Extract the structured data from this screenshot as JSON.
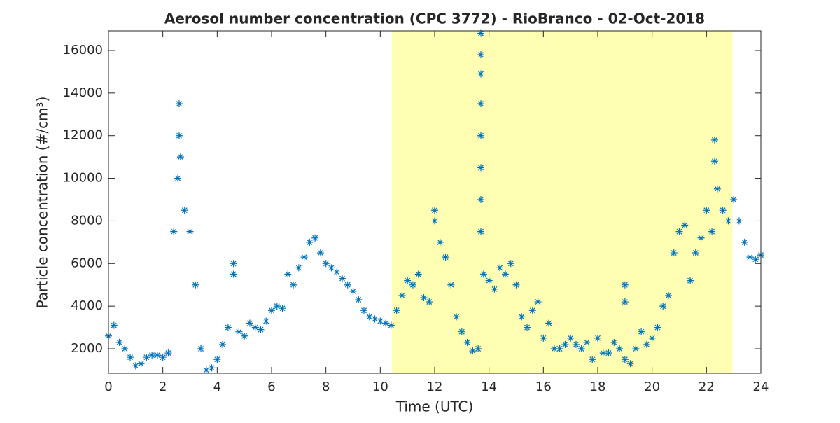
{
  "chart_data": {
    "type": "scatter",
    "title": "Aerosol number concentration (CPC 3772) - RioBranco - 02-Oct-2018",
    "x_label": "Time (UTC)",
    "y_label": "Particle concentration (#/cm³)",
    "xlim": [
      0,
      24
    ],
    "xticks": [
      0,
      2,
      4,
      6,
      8,
      10,
      12,
      14,
      16,
      18,
      20,
      22,
      24
    ],
    "ylim": [
      850,
      16920
    ],
    "yticks": [
      2000,
      4000,
      6000,
      8000,
      10000,
      12000,
      14000,
      16000
    ],
    "grid": false,
    "shaded_region": {
      "x": [
        10.43,
        22.95
      ],
      "color": "#ffffb3"
    },
    "series": [
      {
        "name": "CPC 3772",
        "color": "#0072bd",
        "marker": "asterisk",
        "x": [
          0,
          0.2,
          0.4,
          0.6,
          0.8,
          1.0,
          1.2,
          1.4,
          1.6,
          1.8,
          2.0,
          2.2,
          2.4,
          2.6,
          2.8,
          3.0,
          3.2,
          3.4,
          3.6,
          3.8,
          4.0,
          4.2,
          4.4,
          4.6,
          4.8,
          5.0,
          5.2,
          5.4,
          5.6,
          5.8,
          6.0,
          6.2,
          6.4,
          6.6,
          6.8,
          7.0,
          7.2,
          7.4,
          7.6,
          7.8,
          8.0,
          8.2,
          8.4,
          8.6,
          8.8,
          9.0,
          9.2,
          9.4,
          9.6,
          9.8,
          10.0,
          10.2,
          10.4,
          10.6,
          10.8,
          11.0,
          11.2,
          11.4,
          11.6,
          11.8,
          12.0,
          12.2,
          12.4,
          12.6,
          12.8,
          13.0,
          13.2,
          13.4,
          13.6,
          13.8,
          14.0,
          14.2,
          14.4,
          14.6,
          14.8,
          15.0,
          15.2,
          15.4,
          15.6,
          15.8,
          16.0,
          16.2,
          16.4,
          16.6,
          16.8,
          17.0,
          17.2,
          17.4,
          17.6,
          17.8,
          18.0,
          18.2,
          18.4,
          18.6,
          18.8,
          19.0,
          19.2,
          19.4,
          19.6,
          19.8,
          20.0,
          20.2,
          20.4,
          20.6,
          20.8,
          21.0,
          21.2,
          21.4,
          21.6,
          21.8,
          22.0,
          22.2,
          22.4,
          22.6,
          22.8,
          23.0,
          23.2,
          23.4,
          23.6,
          23.8,
          24.0,
          2.6,
          2.65,
          2.55,
          13.7,
          13.7,
          13.7,
          13.7,
          13.7,
          13.7,
          13.7,
          13.7,
          19.0,
          19.0,
          22.3,
          22.3,
          12.0,
          4.6
        ],
        "values": [
          2600,
          3100,
          2300,
          2000,
          1600,
          1200,
          1300,
          1600,
          1700,
          1700,
          1600,
          1800,
          7500,
          12000,
          8500,
          7500,
          5000,
          2000,
          1000,
          1100,
          1500,
          2200,
          3000,
          5500,
          2800,
          2600,
          3200,
          3000,
          2900,
          3300,
          3800,
          4000,
          3900,
          5500,
          5000,
          5800,
          6300,
          7000,
          7200,
          6500,
          6000,
          5800,
          5600,
          5300,
          5000,
          4700,
          4300,
          3800,
          3500,
          3400,
          3300,
          3200,
          3100,
          3800,
          4500,
          5200,
          5000,
          5500,
          4400,
          4200,
          8000,
          7000,
          6300,
          5000,
          3500,
          2800,
          2300,
          1900,
          2000,
          5500,
          5200,
          4800,
          5800,
          5500,
          6000,
          5000,
          3500,
          3000,
          3800,
          4200,
          2500,
          3200,
          2000,
          2000,
          2200,
          2500,
          2200,
          2000,
          2300,
          1500,
          2500,
          1800,
          1800,
          2300,
          2000,
          1500,
          1300,
          2000,
          2800,
          2200,
          2500,
          3000,
          4000,
          4500,
          6500,
          7500,
          7800,
          5200,
          6500,
          7200,
          8500,
          7500,
          9500,
          8500,
          8000,
          9000,
          8000,
          7000,
          6300,
          6200,
          6400,
          13500,
          11000,
          10000,
          16800,
          15800,
          14900,
          13500,
          12000,
          10500,
          9000,
          7500,
          5000,
          4200,
          11800,
          10800,
          8500,
          6000
        ]
      }
    ]
  }
}
